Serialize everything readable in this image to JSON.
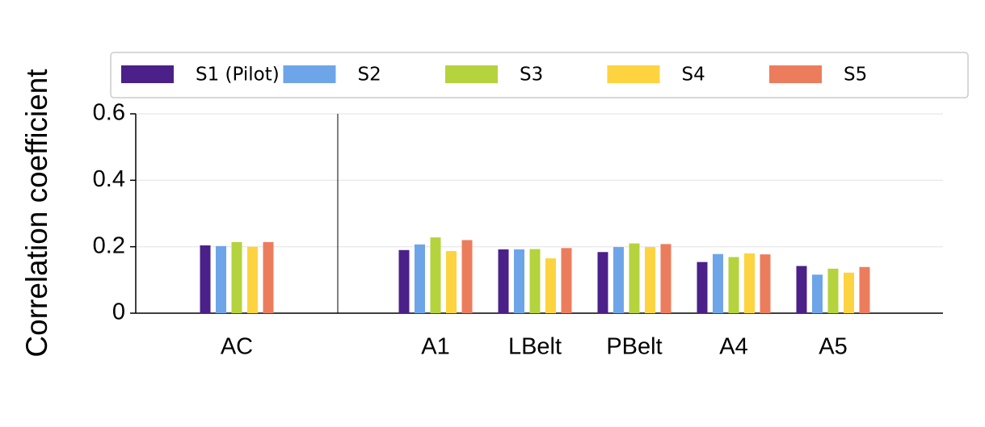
{
  "chart_data": {
    "type": "bar",
    "y_label": "Correlation coefficient",
    "categories": [
      "AC",
      "A1",
      "LBelt",
      "PBelt",
      "A4",
      "A5"
    ],
    "series": [
      {
        "name": "S1 (Pilot)",
        "color": "#4b2088",
        "values": [
          0.204,
          0.19,
          0.192,
          0.184,
          0.154,
          0.142
        ]
      },
      {
        "name": "S2",
        "color": "#6ea5e8",
        "values": [
          0.202,
          0.207,
          0.192,
          0.199,
          0.178,
          0.116
        ]
      },
      {
        "name": "S3",
        "color": "#b5d33d",
        "values": [
          0.214,
          0.228,
          0.193,
          0.21,
          0.169,
          0.134
        ]
      },
      {
        "name": "S4",
        "color": "#fdd340",
        "values": [
          0.2,
          0.187,
          0.165,
          0.199,
          0.18,
          0.122
        ]
      },
      {
        "name": "S5",
        "color": "#ec7d5c",
        "values": [
          0.214,
          0.22,
          0.196,
          0.208,
          0.177,
          0.139
        ]
      }
    ],
    "ylim": [
      0,
      0.6
    ],
    "yticks": [
      0,
      0.2,
      0.4,
      0.6
    ],
    "grid": true
  }
}
